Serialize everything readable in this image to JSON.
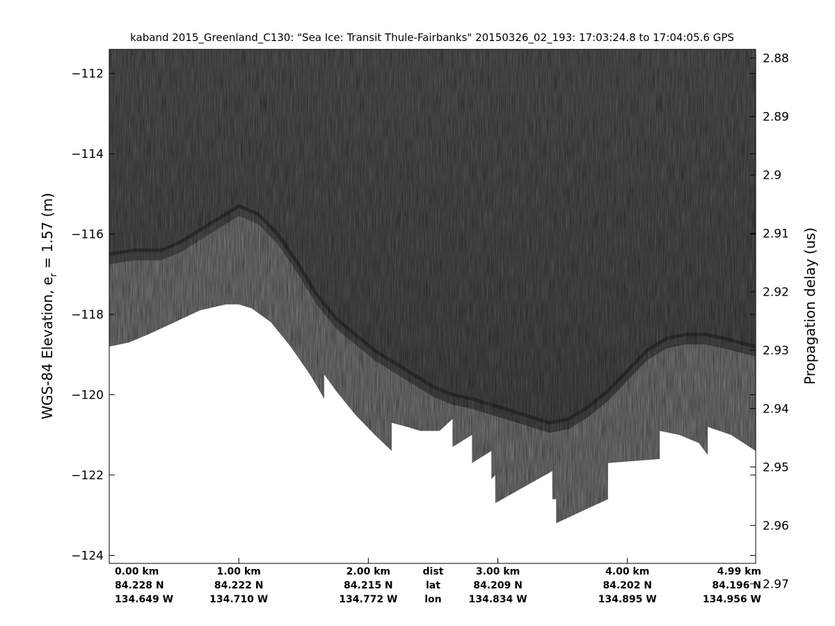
{
  "chart_data": {
    "type": "heatmap",
    "title": "kaband 2015_Greenland_C130: \"Sea Ice: Transit Thule-Fairbanks\"  20150326_02_193: 17:03:24.8 to 17:04:05.6 GPS",
    "ylabel_left": "WGS-84 Elevation, e",
    "ylabel_left_sub": "r",
    "ylabel_left_tail": " = 1.57 (m)",
    "ylabel_right": "Propagation delay (us)",
    "ylim": [
      -124.2,
      -111.4
    ],
    "y2lim": [
      2.8785,
      2.9665
    ],
    "yticks_left": [
      {
        "value": -112,
        "label": "−112"
      },
      {
        "value": -114,
        "label": "−114"
      },
      {
        "value": -116,
        "label": "−116"
      },
      {
        "value": -118,
        "label": "−118"
      },
      {
        "value": -120,
        "label": "−120"
      },
      {
        "value": -122,
        "label": "−122"
      },
      {
        "value": -124,
        "label": "−124"
      }
    ],
    "yticks_right": [
      {
        "value": 2.88,
        "label": "2.88"
      },
      {
        "value": 2.89,
        "label": "2.89"
      },
      {
        "value": 2.9,
        "label": "2.9"
      },
      {
        "value": 2.91,
        "label": "2.91"
      },
      {
        "value": 2.92,
        "label": "2.92"
      },
      {
        "value": 2.93,
        "label": "2.93"
      },
      {
        "value": 2.94,
        "label": "2.94"
      },
      {
        "value": 2.95,
        "label": "2.95"
      },
      {
        "value": 2.96,
        "label": "2.96"
      },
      {
        "value": 2.97,
        "label": "2.97"
      }
    ],
    "xlim": [
      0,
      4.99
    ],
    "xticks": [
      {
        "value": 0,
        "dist": "0.00 km",
        "lat": "84.228 N",
        "lon": "134.649 W"
      },
      {
        "value": 1,
        "dist": "1.00 km",
        "lat": "84.222 N",
        "lon": "134.710 W"
      },
      {
        "value": 2,
        "dist": "2.00 km",
        "lat": "84.215 N",
        "lon": "134.772 W"
      },
      {
        "value": 3,
        "dist": "3.00 km",
        "lat": "84.209 N",
        "lon": "134.834 W"
      },
      {
        "value": 4,
        "dist": "4.00 km",
        "lat": "84.202 N",
        "lon": "134.895 W"
      },
      {
        "value": 4.99,
        "dist": "4.99 km",
        "lat": "84.196 N",
        "lon": "134.956 W"
      }
    ],
    "xrow_labels": {
      "dist": "dist",
      "lat": "lat",
      "lon": "lon"
    },
    "xrow_labels_position_km": 2.5,
    "surface_elevation_m": [
      [
        0.0,
        -116.5
      ],
      [
        0.2,
        -116.4
      ],
      [
        0.4,
        -116.4
      ],
      [
        0.55,
        -116.2
      ],
      [
        0.7,
        -115.9
      ],
      [
        0.85,
        -115.6
      ],
      [
        1.0,
        -115.3
      ],
      [
        1.15,
        -115.5
      ],
      [
        1.3,
        -116.0
      ],
      [
        1.45,
        -116.7
      ],
      [
        1.6,
        -117.5
      ],
      [
        1.75,
        -118.1
      ],
      [
        1.9,
        -118.5
      ],
      [
        2.05,
        -118.9
      ],
      [
        2.2,
        -119.2
      ],
      [
        2.35,
        -119.5
      ],
      [
        2.5,
        -119.8
      ],
      [
        2.65,
        -120.0
      ],
      [
        2.8,
        -120.1
      ],
      [
        3.0,
        -120.3
      ],
      [
        3.2,
        -120.5
      ],
      [
        3.4,
        -120.7
      ],
      [
        3.55,
        -120.6
      ],
      [
        3.7,
        -120.3
      ],
      [
        3.85,
        -119.9
      ],
      [
        4.0,
        -119.4
      ],
      [
        4.15,
        -118.9
      ],
      [
        4.3,
        -118.6
      ],
      [
        4.45,
        -118.5
      ],
      [
        4.6,
        -118.5
      ],
      [
        4.75,
        -118.6
      ],
      [
        4.99,
        -118.8
      ]
    ],
    "data_floor_elevation_m": [
      [
        0.0,
        -118.8
      ],
      [
        0.15,
        -118.7
      ],
      [
        0.3,
        -118.5
      ],
      [
        0.5,
        -118.2
      ],
      [
        0.7,
        -117.9
      ],
      [
        0.9,
        -117.75
      ],
      [
        1.0,
        -117.75
      ],
      [
        1.1,
        -117.85
      ],
      [
        1.25,
        -118.2
      ],
      [
        1.4,
        -118.8
      ],
      [
        1.55,
        -119.5
      ],
      [
        1.66,
        -120.1
      ],
      [
        1.66,
        -119.5
      ],
      [
        1.75,
        -119.9
      ],
      [
        1.9,
        -120.5
      ],
      [
        2.05,
        -121.0
      ],
      [
        2.18,
        -121.4
      ],
      [
        2.18,
        -120.7
      ],
      [
        2.3,
        -120.8
      ],
      [
        2.4,
        -120.9
      ],
      [
        2.55,
        -120.9
      ],
      [
        2.65,
        -120.6
      ],
      [
        2.65,
        -121.3
      ],
      [
        2.8,
        -121.0
      ],
      [
        2.8,
        -121.7
      ],
      [
        2.95,
        -121.4
      ],
      [
        2.95,
        -122.1
      ],
      [
        2.98,
        -122.0
      ],
      [
        2.98,
        -122.7
      ],
      [
        3.2,
        -122.3
      ],
      [
        3.42,
        -121.9
      ],
      [
        3.42,
        -122.6
      ],
      [
        3.45,
        -122.6
      ],
      [
        3.45,
        -123.2
      ],
      [
        3.65,
        -122.9
      ],
      [
        3.85,
        -122.6
      ],
      [
        3.85,
        -121.7
      ],
      [
        4.05,
        -121.65
      ],
      [
        4.25,
        -121.6
      ],
      [
        4.25,
        -120.9
      ],
      [
        4.4,
        -121.0
      ],
      [
        4.55,
        -121.2
      ],
      [
        4.62,
        -121.5
      ],
      [
        4.62,
        -120.8
      ],
      [
        4.8,
        -121.0
      ],
      [
        4.99,
        -121.4
      ]
    ],
    "colormap": "grayscale",
    "grid": false
  }
}
